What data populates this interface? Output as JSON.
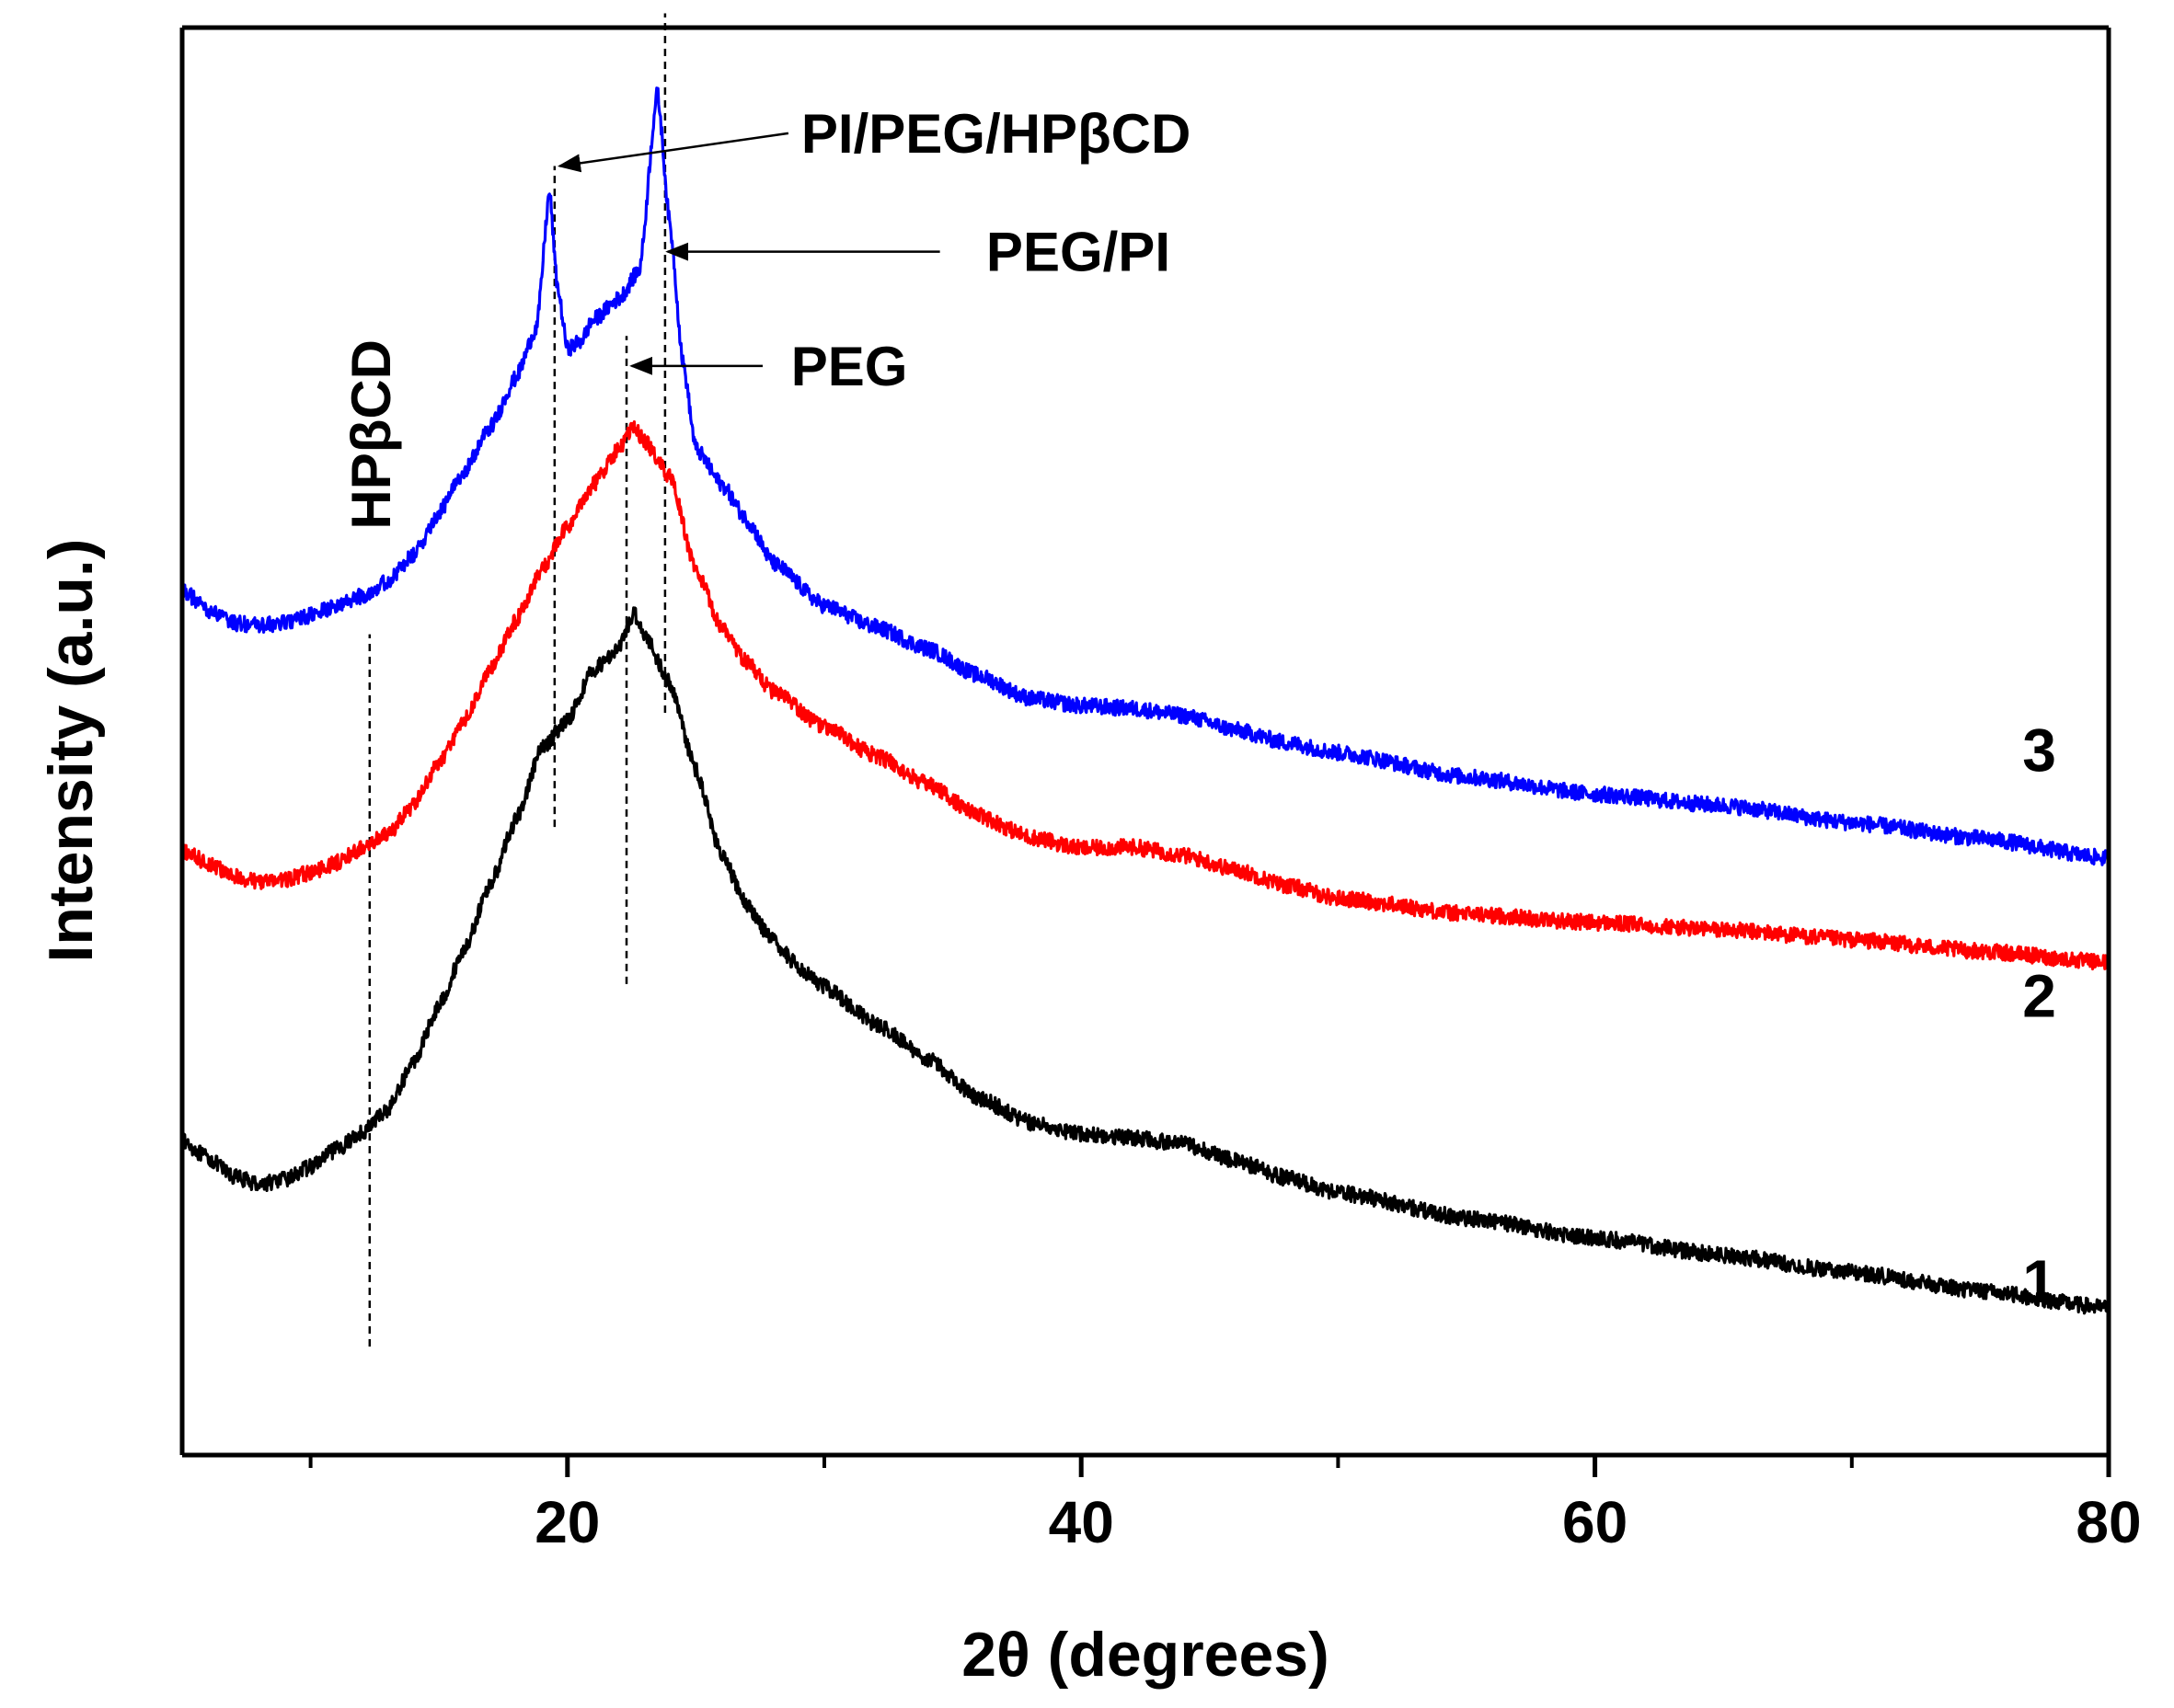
{
  "chart_data": {
    "type": "line",
    "title": "",
    "xlabel": "2θ (degrees)",
    "ylabel": "Intensity (a.u.)",
    "xlim": [
      5,
      80
    ],
    "xticks_major": [
      20,
      40,
      60,
      80
    ],
    "xticks_minor": [
      10,
      30,
      50,
      70
    ],
    "yticks": [],
    "grid": false,
    "legend": "none",
    "units": "arbitrary intensity (0 = bottom axis, 100 = top axis)",
    "series": [
      {
        "name": "1",
        "color": "#000000",
        "noise": 0.55,
        "points": [
          [
            5,
            22
          ],
          [
            6,
            20.8
          ],
          [
            7,
            19.5
          ],
          [
            8,
            19
          ],
          [
            9,
            19.3
          ],
          [
            10,
            20.2
          ],
          [
            11,
            21.4
          ],
          [
            12,
            22.6
          ],
          [
            13,
            24.2
          ],
          [
            14,
            27.5
          ],
          [
            15,
            31.5
          ],
          [
            16,
            35.5
          ],
          [
            17,
            40
          ],
          [
            18,
            44.5
          ],
          [
            19,
            49.5
          ],
          [
            20,
            51.5
          ],
          [
            21,
            55
          ],
          [
            22,
            56.5
          ],
          [
            22.6,
            59
          ],
          [
            23,
            57.5
          ],
          [
            24,
            54
          ],
          [
            25,
            48
          ],
          [
            26,
            42
          ],
          [
            27,
            38.5
          ],
          [
            28,
            36
          ],
          [
            29,
            34.2
          ],
          [
            30,
            32.8
          ],
          [
            32,
            30.2
          ],
          [
            34,
            27.8
          ],
          [
            36,
            25
          ],
          [
            38,
            23.3
          ],
          [
            40,
            22.5
          ],
          [
            42,
            22.2
          ],
          [
            44,
            21.8
          ],
          [
            46,
            20.6
          ],
          [
            48,
            19.4
          ],
          [
            50,
            18.4
          ],
          [
            55,
            16.6
          ],
          [
            60,
            15.2
          ],
          [
            65,
            14
          ],
          [
            70,
            12.8
          ],
          [
            75,
            11.5
          ],
          [
            80,
            10.3
          ]
        ]
      },
      {
        "name": "2",
        "color": "#ff0000",
        "noise": 0.55,
        "points": [
          [
            5,
            42.3
          ],
          [
            6,
            41.5
          ],
          [
            7,
            40.5
          ],
          [
            8,
            40.2
          ],
          [
            9,
            40.3
          ],
          [
            10,
            40.8
          ],
          [
            11,
            41.5
          ],
          [
            12,
            42.5
          ],
          [
            13,
            43.5
          ],
          [
            14,
            45.5
          ],
          [
            15,
            48.5
          ],
          [
            16,
            51.5
          ],
          [
            17,
            55
          ],
          [
            18,
            58.5
          ],
          [
            19,
            62
          ],
          [
            20,
            65
          ],
          [
            21,
            68
          ],
          [
            22,
            70.5
          ],
          [
            22.6,
            72
          ],
          [
            23,
            71
          ],
          [
            24,
            68.5
          ],
          [
            25,
            62
          ],
          [
            26,
            58
          ],
          [
            27,
            55.5
          ],
          [
            28,
            53.5
          ],
          [
            30,
            51
          ],
          [
            32,
            49
          ],
          [
            34,
            47
          ],
          [
            36,
            44.8
          ],
          [
            38,
            43.3
          ],
          [
            40,
            42.5
          ],
          [
            42,
            42.6
          ],
          [
            44,
            42
          ],
          [
            46,
            41
          ],
          [
            48,
            39.9
          ],
          [
            50,
            39
          ],
          [
            55,
            37.9
          ],
          [
            60,
            37.3
          ],
          [
            65,
            36.8
          ],
          [
            70,
            36.1
          ],
          [
            75,
            35.3
          ],
          [
            80,
            34.5
          ]
        ]
      },
      {
        "name": "3",
        "color": "#0000ff",
        "noise": 0.55,
        "points": [
          [
            5,
            60.6
          ],
          [
            6,
            59.2
          ],
          [
            7,
            58.3
          ],
          [
            8,
            58.1
          ],
          [
            9,
            58.3
          ],
          [
            10,
            58.8
          ],
          [
            11,
            59.5
          ],
          [
            12,
            60.2
          ],
          [
            13,
            61.2
          ],
          [
            14,
            63
          ],
          [
            15,
            66
          ],
          [
            16,
            69
          ],
          [
            17,
            72
          ],
          [
            18,
            75.5
          ],
          [
            18.8,
            79
          ],
          [
            19.3,
            88.5
          ],
          [
            19.6,
            82
          ],
          [
            20,
            77.5
          ],
          [
            20.5,
            78
          ],
          [
            21,
            79.5
          ],
          [
            22,
            81
          ],
          [
            22.8,
            83
          ],
          [
            23.5,
            95.5
          ],
          [
            24,
            86
          ],
          [
            24.5,
            76.5
          ],
          [
            25,
            70.5
          ],
          [
            26,
            68
          ],
          [
            27,
            65.5
          ],
          [
            28,
            62.5
          ],
          [
            30,
            59.5
          ],
          [
            32,
            58
          ],
          [
            34,
            56.5
          ],
          [
            36,
            54.6
          ],
          [
            38,
            53
          ],
          [
            40,
            52.5
          ],
          [
            42,
            52.3
          ],
          [
            44,
            51.8
          ],
          [
            46,
            50.8
          ],
          [
            48,
            49.9
          ],
          [
            50,
            49.2
          ],
          [
            55,
            47.5
          ],
          [
            60,
            46.3
          ],
          [
            65,
            45.5
          ],
          [
            70,
            44.3
          ],
          [
            75,
            43.2
          ],
          [
            80,
            41.8
          ]
        ]
      }
    ],
    "series_labels": [
      {
        "text": "1",
        "x": 77.3,
        "y": 10.7
      },
      {
        "text": "2",
        "x": 77.3,
        "y": 30.7
      },
      {
        "text": "3",
        "x": 77.3,
        "y": 47.9
      }
    ],
    "reference_lines": [
      {
        "x": 12.3,
        "y_from": 7.6,
        "y_to": 57.5
      },
      {
        "x": 19.5,
        "y_from": 44,
        "y_to": 90.3
      },
      {
        "x": 22.3,
        "y_from": 33,
        "y_to": 78.4
      },
      {
        "x": 23.8,
        "y_from": 52,
        "y_to": 101
      }
    ],
    "annotations": [
      {
        "text": "HPβCD",
        "x": 12.3,
        "y": 71.5,
        "rotation": -90,
        "arrow": false
      },
      {
        "text": "PI/PEG/HPβCD",
        "x": 28.6,
        "y": 92.6,
        "arrow_from": [
          28.6,
          92.6
        ],
        "arrow_to": [
          19.7,
          90.3
        ]
      },
      {
        "text": "PEG/PI",
        "x": 35.8,
        "y": 84.3,
        "arrow_from": [
          34.5,
          84.3
        ],
        "arrow_to": [
          23.9,
          84.3
        ]
      },
      {
        "text": "PEG",
        "x": 28.2,
        "y": 76.3,
        "arrow_from": [
          27.6,
          76.3
        ],
        "arrow_to": [
          22.5,
          76.3
        ]
      }
    ]
  }
}
